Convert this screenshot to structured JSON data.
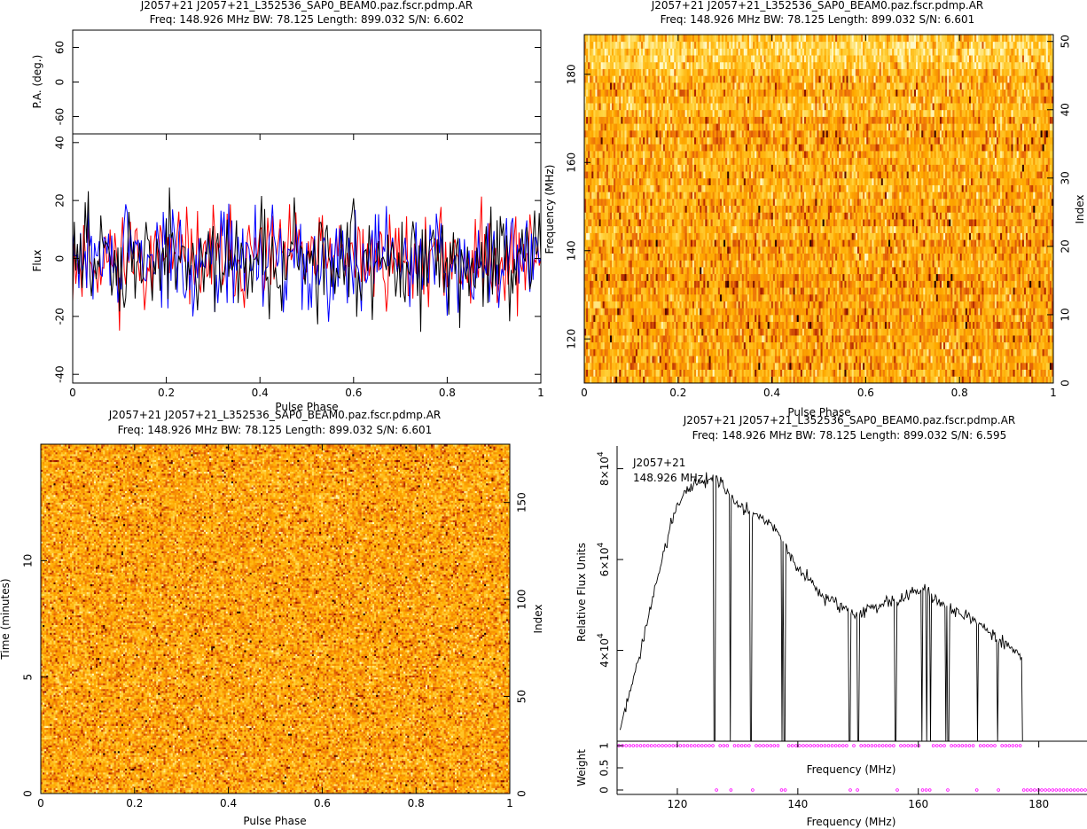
{
  "colors": {
    "axis": "#000000",
    "stokes_i": "#000000",
    "linear": "#ff0000",
    "circular": "#0000ff",
    "weight_marker": "#ff00ff",
    "heat_low": "#ffffff",
    "heat_mid": "#ffb400",
    "heat_high": "#c02000",
    "heat_peak": "#000000"
  },
  "chart_data": [
    {
      "id": "profile",
      "type": "line",
      "title": "J2057+21  J2057+21_L352536_SAP0_BEAM0.paz.fscr.pdmp.AR",
      "subtitle": "Freq: 148.926 MHz BW: 78.125 Length: 899.032 S/N: 6.602",
      "xlabel": "Pulse Phase",
      "xlim": [
        0,
        1
      ],
      "xticks": [
        "0",
        "0.2",
        "0.4",
        "0.6",
        "0.8",
        "1"
      ],
      "pa_panel": {
        "ylabel": "P.A. (deg.)",
        "ylim": [
          -90,
          90
        ],
        "yticks": [
          "-60",
          "0",
          "60"
        ]
      },
      "flux_panel": {
        "ylabel": "Flux",
        "ylim": [
          -43,
          43
        ],
        "yticks": [
          "-40",
          "-20",
          "0",
          "20",
          "40"
        ]
      },
      "series": [
        {
          "key": "linear",
          "color": "#ff0000",
          "seed": 11,
          "sigma": 9,
          "n": 300
        },
        {
          "key": "circular",
          "color": "#0000ff",
          "seed": 29,
          "sigma": 9.5,
          "n": 300
        },
        {
          "key": "total",
          "color": "#000000",
          "seed": 47,
          "sigma": 10.5,
          "n": 300
        }
      ]
    },
    {
      "id": "freq_phase",
      "type": "heatmap",
      "title": "J2057+21  J2057+21_L352536_SAP0_BEAM0.paz.fscr.pdmp.AR",
      "subtitle": "Freq: 148.926 MHz BW: 78.125 Length: 899.032 S/N: 6.601",
      "xlabel": "Pulse Phase",
      "ylabel": "Frequency (MHz)",
      "y2label": "Index",
      "xlim": [
        0,
        1
      ],
      "ylim": [
        110,
        189
      ],
      "y2lim": [
        0,
        51
      ],
      "xticks": [
        "0",
        "0.2",
        "0.4",
        "0.6",
        "0.8",
        "1"
      ],
      "yticks": [
        "120",
        "140",
        "160",
        "180"
      ],
      "y2ticks": [
        "0",
        "10",
        "20",
        "30",
        "40",
        "50"
      ],
      "rows": 51,
      "cols": 256,
      "seed": 101
    },
    {
      "id": "time_phase",
      "type": "heatmap",
      "title": "J2057+21  J2057+21_L352536_SAP0_BEAM0.paz.fscr.pdmp.AR",
      "subtitle": "Freq: 148.926 MHz BW: 78.125 Length: 899.032 S/N: 6.601",
      "xlabel": "Pulse Phase",
      "ylabel": "Time (minutes)",
      "y2label": "Index",
      "xlim": [
        0,
        1
      ],
      "ylim": [
        0,
        15
      ],
      "y2lim": [
        0,
        180
      ],
      "xticks": [
        "0",
        "0.2",
        "0.4",
        "0.6",
        "0.8",
        "1"
      ],
      "yticks": [
        "0",
        "5",
        "10"
      ],
      "y2ticks": [
        "0",
        "50",
        "100",
        "150"
      ],
      "rows": 180,
      "cols": 256,
      "seed": 202
    },
    {
      "id": "bandpass",
      "type": "line",
      "title": "J2057+21  J2057+21_L352536_SAP0_BEAM0.paz.fscr.pdmp.AR",
      "subtitle": "Freq: 148.926 MHz BW: 78.125 Length: 899.032 S/N: 6.595",
      "annotation": [
        "J2057+21",
        "148.926 MHz"
      ],
      "xlabel": "Frequency (MHz)",
      "ylabel": "Relative Flux Units",
      "xlim": [
        110,
        188
      ],
      "ylim": [
        20000,
        85000
      ],
      "yticks": [
        {
          "base": "4×10",
          "exp": "4",
          "value": 40000
        },
        {
          "base": "6×10",
          "exp": "4",
          "value": 60000
        },
        {
          "base": "8×10",
          "exp": "4",
          "value": 80000
        }
      ],
      "xticks": [
        "120",
        "140",
        "160",
        "180"
      ],
      "shape": [
        [
          110.5,
          23000
        ],
        [
          112,
          30000
        ],
        [
          114,
          40000
        ],
        [
          116,
          52000
        ],
        [
          118,
          63000
        ],
        [
          120,
          72000
        ],
        [
          121.5,
          75000
        ],
        [
          123,
          76500
        ],
        [
          124.5,
          77000
        ],
        [
          126,
          78000
        ],
        [
          127,
          77500
        ],
        [
          128.5,
          74000
        ],
        [
          130,
          72000
        ],
        [
          132,
          70000
        ],
        [
          134,
          69000
        ],
        [
          136,
          67000
        ],
        [
          138,
          63000
        ],
        [
          140,
          58000
        ],
        [
          142,
          55000
        ],
        [
          144,
          52000
        ],
        [
          146,
          50500
        ],
        [
          148,
          49000
        ],
        [
          150,
          48000
        ],
        [
          152,
          49000
        ],
        [
          154,
          50500
        ],
        [
          156,
          51000
        ],
        [
          158,
          52000
        ],
        [
          160,
          53500
        ],
        [
          161,
          54000
        ],
        [
          162,
          52500
        ],
        [
          163,
          51000
        ],
        [
          165,
          49000
        ],
        [
          167,
          48000
        ],
        [
          169,
          46500
        ],
        [
          171,
          45000
        ],
        [
          173,
          42500
        ],
        [
          175,
          41000
        ],
        [
          177.3,
          38500
        ]
      ],
      "zapped_mhz": [
        126.2,
        128.8,
        132.2,
        137.4,
        137.8,
        148.6,
        150.0,
        156.2,
        160.6,
        161.4,
        162.0,
        164.6,
        165.0,
        169.8,
        173.2,
        177.4
      ],
      "weight_panel": {
        "ylabel": "Weight",
        "xlabel": "Frequency (MHz)",
        "ylim": [
          -0.1,
          1.1
        ],
        "yticks": [
          "0",
          "0.5",
          "1"
        ],
        "zero_from_mhz": 177.4
      }
    }
  ]
}
